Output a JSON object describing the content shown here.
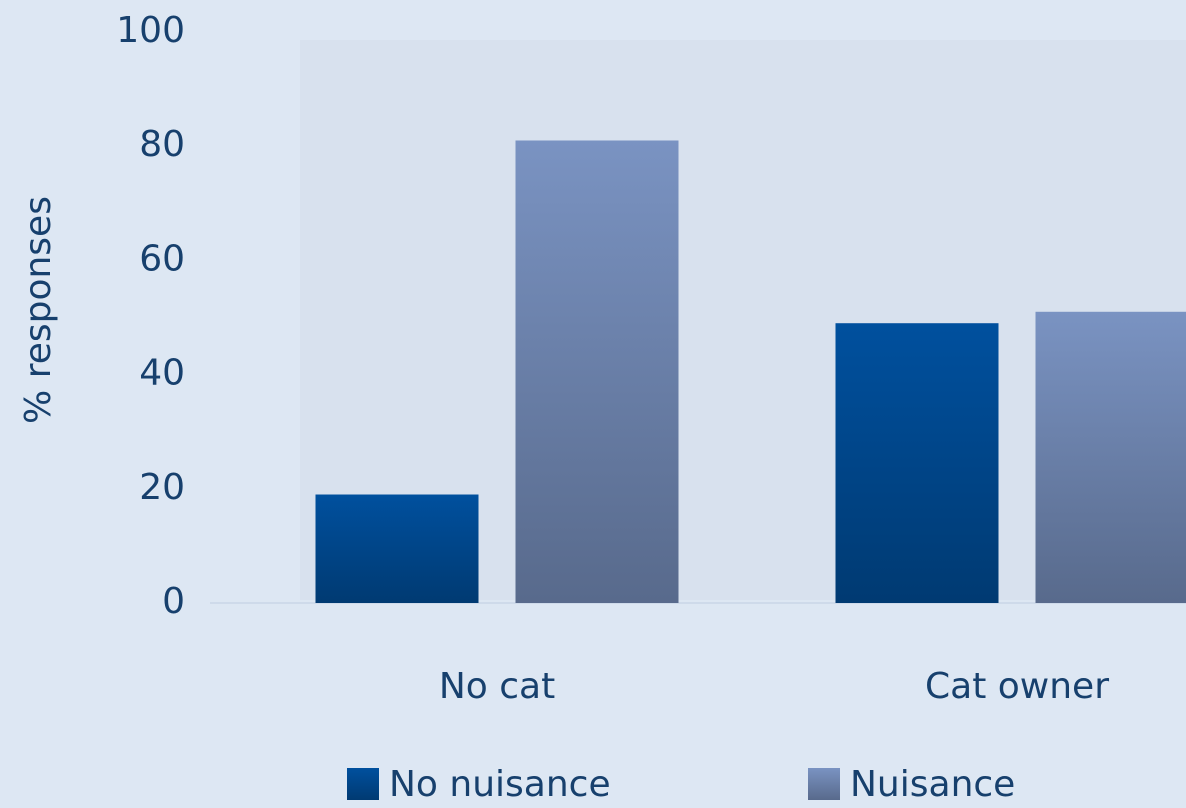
{
  "chart_data": {
    "type": "bar",
    "categories": [
      "No cat",
      "Cat owner"
    ],
    "series": [
      {
        "name": "No nuisance",
        "color": "#00509e",
        "values": [
          19,
          49
        ]
      },
      {
        "name": "Nuisance",
        "color": "#7a93c2",
        "values": [
          81,
          51
        ]
      }
    ],
    "y_label": "% responses",
    "ylim": [
      0,
      100
    ],
    "yticks": [
      0,
      20,
      40,
      60,
      80,
      100
    ],
    "legend": "bottom"
  }
}
